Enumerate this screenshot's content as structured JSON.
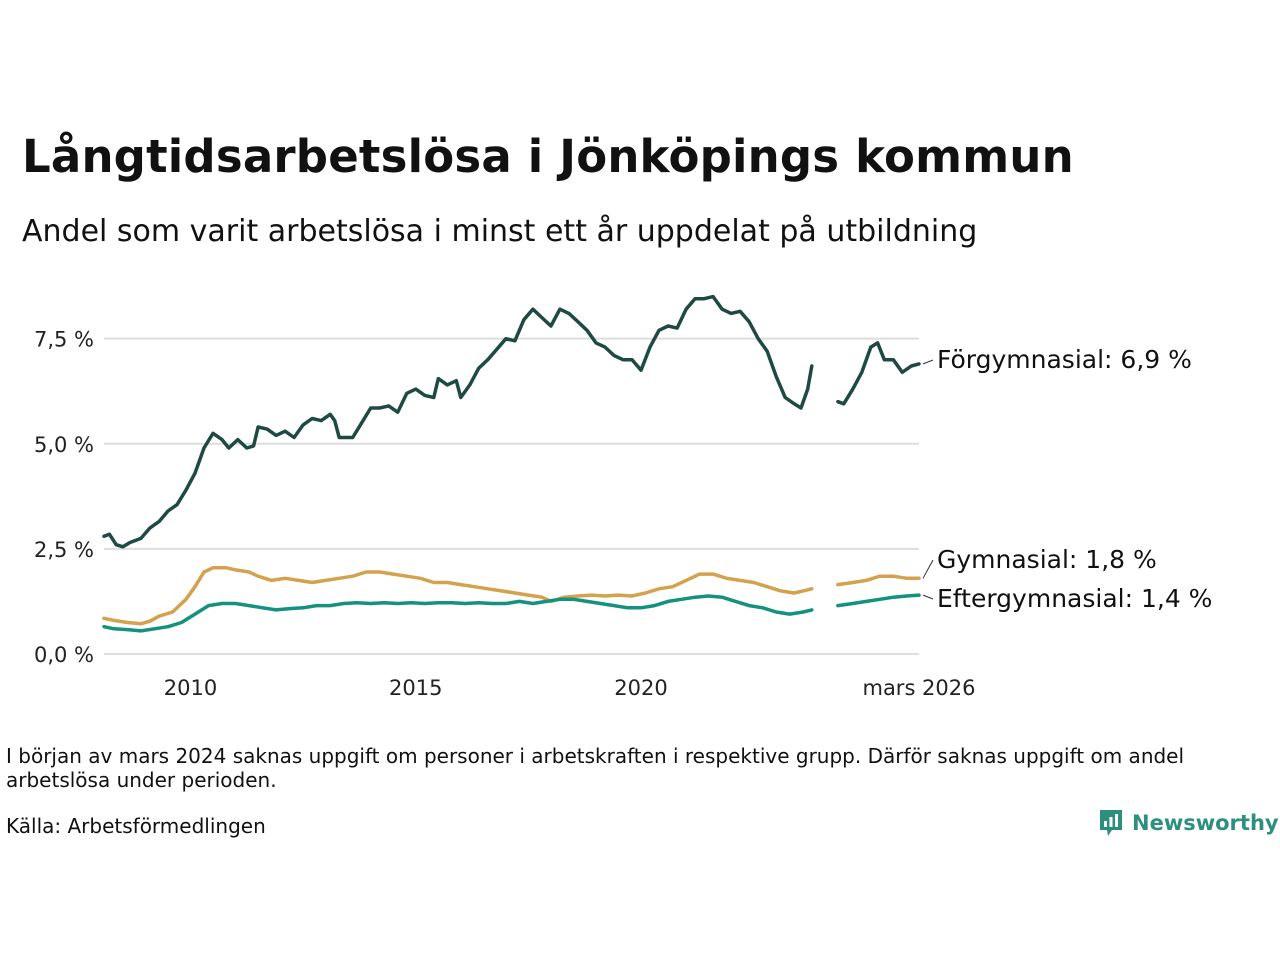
{
  "title": "Långtidsarbetslösa i Jönköpings kommun",
  "subtitle": "Andel som varit arbetslösa i minst ett år uppdelat på utbildning",
  "note": "I början av mars 2024 saknas uppgift om personer i arbetskraften i respektive grupp. Därför saknas uppgift om andel arbetslösa under perioden.",
  "source": "Källa: Arbetsförmedlingen",
  "brand": "Newsworthy",
  "colors": {
    "forgymnasial": "#1f4a44",
    "gymnasial": "#d4a24c",
    "eftergymnasial": "#14917f",
    "grid": "#dddddd",
    "brand": "#2f8f7f"
  },
  "chart_data": {
    "type": "line",
    "title": "Långtidsarbetslösa i Jönköpings kommun",
    "subtitle": "Andel som varit arbetslösa i minst ett år uppdelat på utbildning",
    "xlabel": "",
    "ylabel": "",
    "xlim": [
      2008.08,
      2026.17
    ],
    "ylim": [
      0,
      8.8
    ],
    "yticks": [
      0,
      2.5,
      5.0,
      7.5
    ],
    "ytick_labels": [
      "0,0 %",
      "2,5 %",
      "5,0 %",
      "7,5 %"
    ],
    "xticks": [
      2010,
      2015,
      2020,
      2026.17
    ],
    "xtick_labels": [
      "2010",
      "2015",
      "2020",
      "mars 2026"
    ],
    "grid": true,
    "gap": [
      2023.79,
      2024.37
    ],
    "series": [
      {
        "name": "Förgymnasial",
        "label": "Förgymnasial: 6,9 %",
        "color": "#1f4a44",
        "points": [
          [
            2008.08,
            2.8
          ],
          [
            2008.2,
            2.85
          ],
          [
            2008.35,
            2.6
          ],
          [
            2008.5,
            2.55
          ],
          [
            2008.65,
            2.65
          ],
          [
            2008.9,
            2.75
          ],
          [
            2009.1,
            3.0
          ],
          [
            2009.3,
            3.15
          ],
          [
            2009.5,
            3.4
          ],
          [
            2009.7,
            3.55
          ],
          [
            2009.9,
            3.9
          ],
          [
            2010.1,
            4.3
          ],
          [
            2010.3,
            4.9
          ],
          [
            2010.5,
            5.25
          ],
          [
            2010.7,
            5.1
          ],
          [
            2010.85,
            4.9
          ],
          [
            2011.05,
            5.1
          ],
          [
            2011.25,
            4.9
          ],
          [
            2011.4,
            4.95
          ],
          [
            2011.5,
            5.4
          ],
          [
            2011.7,
            5.35
          ],
          [
            2011.9,
            5.2
          ],
          [
            2012.1,
            5.3
          ],
          [
            2012.3,
            5.15
          ],
          [
            2012.5,
            5.45
          ],
          [
            2012.7,
            5.6
          ],
          [
            2012.9,
            5.55
          ],
          [
            2013.1,
            5.7
          ],
          [
            2013.2,
            5.55
          ],
          [
            2013.3,
            5.15
          ],
          [
            2013.6,
            5.15
          ],
          [
            2013.8,
            5.5
          ],
          [
            2014.0,
            5.85
          ],
          [
            2014.2,
            5.85
          ],
          [
            2014.4,
            5.9
          ],
          [
            2014.6,
            5.75
          ],
          [
            2014.8,
            6.2
          ],
          [
            2015.0,
            6.3
          ],
          [
            2015.2,
            6.15
          ],
          [
            2015.4,
            6.1
          ],
          [
            2015.5,
            6.55
          ],
          [
            2015.7,
            6.4
          ],
          [
            2015.9,
            6.5
          ],
          [
            2016.0,
            6.1
          ],
          [
            2016.2,
            6.4
          ],
          [
            2016.4,
            6.8
          ],
          [
            2016.6,
            7.0
          ],
          [
            2016.8,
            7.25
          ],
          [
            2017.0,
            7.5
          ],
          [
            2017.2,
            7.45
          ],
          [
            2017.4,
            7.95
          ],
          [
            2017.6,
            8.2
          ],
          [
            2017.8,
            8.0
          ],
          [
            2018.0,
            7.8
          ],
          [
            2018.2,
            8.2
          ],
          [
            2018.4,
            8.1
          ],
          [
            2018.6,
            7.9
          ],
          [
            2018.8,
            7.7
          ],
          [
            2019.0,
            7.4
          ],
          [
            2019.2,
            7.3
          ],
          [
            2019.4,
            7.1
          ],
          [
            2019.6,
            7.0
          ],
          [
            2019.8,
            7.0
          ],
          [
            2020.0,
            6.75
          ],
          [
            2020.2,
            7.3
          ],
          [
            2020.4,
            7.7
          ],
          [
            2020.6,
            7.8
          ],
          [
            2020.8,
            7.75
          ],
          [
            2021.0,
            8.2
          ],
          [
            2021.2,
            8.45
          ],
          [
            2021.4,
            8.45
          ],
          [
            2021.6,
            8.5
          ],
          [
            2021.8,
            8.2
          ],
          [
            2022.0,
            8.1
          ],
          [
            2022.2,
            8.15
          ],
          [
            2022.4,
            7.9
          ],
          [
            2022.6,
            7.5
          ],
          [
            2022.8,
            7.2
          ],
          [
            2023.0,
            6.6
          ],
          [
            2023.2,
            6.1
          ],
          [
            2023.4,
            5.95
          ],
          [
            2023.55,
            5.85
          ],
          [
            2023.7,
            6.3
          ],
          [
            2023.79,
            6.85
          ],
          [
            2024.37,
            6.0
          ],
          [
            2024.5,
            5.95
          ],
          [
            2024.7,
            6.3
          ],
          [
            2024.9,
            6.7
          ],
          [
            2025.1,
            7.3
          ],
          [
            2025.25,
            7.4
          ],
          [
            2025.4,
            7.0
          ],
          [
            2025.6,
            7.0
          ],
          [
            2025.8,
            6.7
          ],
          [
            2026.0,
            6.85
          ],
          [
            2026.17,
            6.9
          ]
        ]
      },
      {
        "name": "Gymnasial",
        "label": "Gymnasial: 1,8 %",
        "color": "#d4a24c",
        "points": [
          [
            2008.08,
            0.85
          ],
          [
            2008.3,
            0.8
          ],
          [
            2008.6,
            0.75
          ],
          [
            2008.9,
            0.72
          ],
          [
            2009.1,
            0.78
          ],
          [
            2009.3,
            0.9
          ],
          [
            2009.6,
            1.0
          ],
          [
            2009.9,
            1.3
          ],
          [
            2010.1,
            1.6
          ],
          [
            2010.3,
            1.95
          ],
          [
            2010.5,
            2.05
          ],
          [
            2010.8,
            2.05
          ],
          [
            2011.0,
            2.0
          ],
          [
            2011.3,
            1.95
          ],
          [
            2011.5,
            1.85
          ],
          [
            2011.8,
            1.75
          ],
          [
            2012.1,
            1.8
          ],
          [
            2012.4,
            1.75
          ],
          [
            2012.7,
            1.7
          ],
          [
            2013.0,
            1.75
          ],
          [
            2013.3,
            1.8
          ],
          [
            2013.6,
            1.85
          ],
          [
            2013.9,
            1.95
          ],
          [
            2014.2,
            1.95
          ],
          [
            2014.5,
            1.9
          ],
          [
            2014.8,
            1.85
          ],
          [
            2015.1,
            1.8
          ],
          [
            2015.4,
            1.7
          ],
          [
            2015.7,
            1.7
          ],
          [
            2016.0,
            1.65
          ],
          [
            2016.3,
            1.6
          ],
          [
            2016.6,
            1.55
          ],
          [
            2016.9,
            1.5
          ],
          [
            2017.2,
            1.45
          ],
          [
            2017.5,
            1.4
          ],
          [
            2017.8,
            1.35
          ],
          [
            2018.0,
            1.25
          ],
          [
            2018.3,
            1.35
          ],
          [
            2018.6,
            1.38
          ],
          [
            2018.9,
            1.4
          ],
          [
            2019.2,
            1.38
          ],
          [
            2019.5,
            1.4
          ],
          [
            2019.8,
            1.38
          ],
          [
            2020.1,
            1.45
          ],
          [
            2020.4,
            1.55
          ],
          [
            2020.7,
            1.6
          ],
          [
            2021.0,
            1.75
          ],
          [
            2021.3,
            1.9
          ],
          [
            2021.6,
            1.9
          ],
          [
            2021.9,
            1.8
          ],
          [
            2022.2,
            1.75
          ],
          [
            2022.5,
            1.7
          ],
          [
            2022.8,
            1.6
          ],
          [
            2023.1,
            1.5
          ],
          [
            2023.4,
            1.45
          ],
          [
            2023.6,
            1.5
          ],
          [
            2023.79,
            1.55
          ],
          [
            2024.37,
            1.65
          ],
          [
            2024.7,
            1.7
          ],
          [
            2025.0,
            1.75
          ],
          [
            2025.3,
            1.85
          ],
          [
            2025.6,
            1.85
          ],
          [
            2025.9,
            1.8
          ],
          [
            2026.17,
            1.8
          ]
        ]
      },
      {
        "name": "Eftergymnasial",
        "label": "Eftergymnasial: 1,4 %",
        "color": "#14917f",
        "points": [
          [
            2008.08,
            0.65
          ],
          [
            2008.3,
            0.6
          ],
          [
            2008.6,
            0.58
          ],
          [
            2008.9,
            0.55
          ],
          [
            2009.2,
            0.6
          ],
          [
            2009.5,
            0.65
          ],
          [
            2009.8,
            0.75
          ],
          [
            2010.1,
            0.95
          ],
          [
            2010.4,
            1.15
          ],
          [
            2010.7,
            1.2
          ],
          [
            2011.0,
            1.2
          ],
          [
            2011.3,
            1.15
          ],
          [
            2011.6,
            1.1
          ],
          [
            2011.9,
            1.05
          ],
          [
            2012.2,
            1.08
          ],
          [
            2012.5,
            1.1
          ],
          [
            2012.8,
            1.15
          ],
          [
            2013.1,
            1.15
          ],
          [
            2013.4,
            1.2
          ],
          [
            2013.7,
            1.22
          ],
          [
            2014.0,
            1.2
          ],
          [
            2014.3,
            1.22
          ],
          [
            2014.6,
            1.2
          ],
          [
            2014.9,
            1.22
          ],
          [
            2015.2,
            1.2
          ],
          [
            2015.5,
            1.22
          ],
          [
            2015.8,
            1.22
          ],
          [
            2016.1,
            1.2
          ],
          [
            2016.4,
            1.22
          ],
          [
            2016.7,
            1.2
          ],
          [
            2017.0,
            1.2
          ],
          [
            2017.3,
            1.25
          ],
          [
            2017.6,
            1.2
          ],
          [
            2017.9,
            1.25
          ],
          [
            2018.2,
            1.3
          ],
          [
            2018.5,
            1.3
          ],
          [
            2018.8,
            1.25
          ],
          [
            2019.1,
            1.2
          ],
          [
            2019.4,
            1.15
          ],
          [
            2019.7,
            1.1
          ],
          [
            2020.0,
            1.1
          ],
          [
            2020.3,
            1.15
          ],
          [
            2020.6,
            1.25
          ],
          [
            2020.9,
            1.3
          ],
          [
            2021.2,
            1.35
          ],
          [
            2021.5,
            1.38
          ],
          [
            2021.8,
            1.35
          ],
          [
            2022.1,
            1.25
          ],
          [
            2022.4,
            1.15
          ],
          [
            2022.7,
            1.1
          ],
          [
            2023.0,
            1.0
          ],
          [
            2023.3,
            0.95
          ],
          [
            2023.6,
            1.0
          ],
          [
            2023.79,
            1.05
          ],
          [
            2024.37,
            1.15
          ],
          [
            2024.7,
            1.2
          ],
          [
            2025.0,
            1.25
          ],
          [
            2025.3,
            1.3
          ],
          [
            2025.6,
            1.35
          ],
          [
            2025.9,
            1.38
          ],
          [
            2026.17,
            1.4
          ]
        ]
      }
    ]
  }
}
